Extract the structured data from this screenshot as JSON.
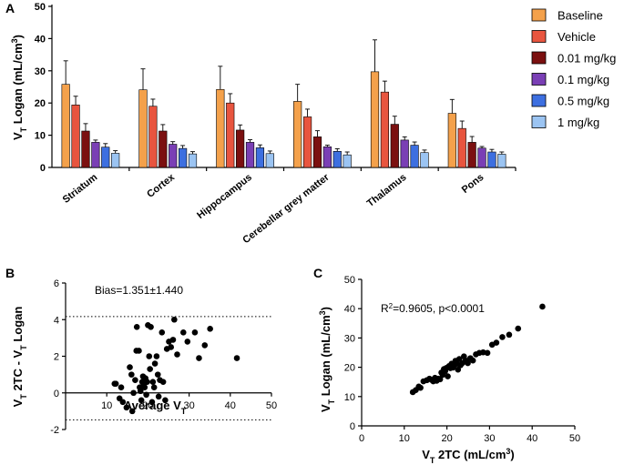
{
  "chart_data": [
    {
      "panel": "A",
      "type": "bar",
      "ylabel_main": "V",
      "ylabel_sub": "T",
      "ylabel_rest": " Logan (mL/cm",
      "ylabel_sup": "3",
      "ylabel_end": ")",
      "ylim": [
        0,
        50
      ],
      "yticks": [
        0,
        10,
        20,
        30,
        40,
        50
      ],
      "categories": [
        "Striatum",
        "Cortex",
        "Hippocampus",
        "Cerebellar grey matter",
        "Thalamus",
        "Pons"
      ],
      "series": [
        {
          "name": "Baseline",
          "color": "#f4a14b",
          "values": [
            25.8,
            24.1,
            24.2,
            20.5,
            29.7,
            16.8
          ],
          "errors": [
            7.3,
            6.5,
            7.2,
            5.3,
            9.9,
            4.3
          ]
        },
        {
          "name": "Vehicle",
          "color": "#e8553f",
          "values": [
            19.4,
            19.0,
            20.0,
            15.7,
            23.4,
            12.1
          ],
          "errors": [
            2.7,
            2.2,
            2.9,
            2.4,
            3.4,
            2.3
          ]
        },
        {
          "name": "0.01 mg/kg",
          "color": "#7b1010",
          "values": [
            11.3,
            11.3,
            11.6,
            9.5,
            13.4,
            7.8
          ],
          "errors": [
            2.3,
            2.0,
            1.6,
            1.9,
            2.5,
            1.8
          ]
        },
        {
          "name": "0.1 mg/kg",
          "color": "#7a3fb5",
          "values": [
            7.8,
            7.2,
            7.8,
            6.4,
            8.5,
            6.0
          ],
          "errors": [
            0.7,
            0.8,
            0.8,
            0.5,
            1.0,
            0.5
          ]
        },
        {
          "name": "0.5 mg/kg",
          "color": "#3d6fe0",
          "values": [
            6.3,
            5.9,
            6.1,
            5.0,
            6.9,
            4.8
          ],
          "errors": [
            1.1,
            0.9,
            0.9,
            0.8,
            1.0,
            0.8
          ]
        },
        {
          "name": "1 mg/kg",
          "color": "#9bc4f2",
          "values": [
            4.4,
            4.2,
            4.3,
            3.9,
            4.6,
            4.1
          ],
          "errors": [
            0.8,
            0.7,
            0.8,
            0.9,
            0.8,
            0.7
          ]
        }
      ]
    },
    {
      "panel": "B",
      "type": "scatter",
      "annotation": "Bias=1.351±1.440",
      "ylabel": "Vₜ 2TC - Vₜ Logan",
      "ylabel_parts": [
        "V",
        "T",
        " 2TC - V",
        "T",
        " Logan"
      ],
      "xlabel_main": "Average V",
      "xlabel_sub": "T",
      "xlim": [
        0,
        50
      ],
      "ylim": [
        -2,
        6
      ],
      "xticks": [
        10,
        20,
        30,
        40,
        50
      ],
      "yticks": [
        -2,
        0,
        2,
        4,
        6
      ],
      "bias_limits": [
        4.17,
        -1.47
      ],
      "x": [
        11.9,
        12.2,
        13.1,
        13.5,
        13.9,
        14.8,
        15.6,
        16.0,
        16.2,
        16.5,
        16.9,
        17.2,
        17.3,
        17.8,
        18.0,
        18.2,
        18.4,
        18.6,
        18.8,
        19.0,
        19.2,
        19.4,
        19.6,
        19.8,
        20.0,
        20.3,
        20.5,
        20.7,
        21.0,
        21.2,
        21.5,
        21.7,
        22.1,
        22.4,
        22.6,
        22.9,
        23.4,
        23.7,
        24.2,
        24.6,
        25.1,
        25.6,
        26.1,
        26.4,
        27.1,
        28.6,
        29.6,
        31.4,
        32.4,
        33.8,
        35.1,
        41.6
      ],
      "y": [
        0.5,
        0.5,
        -0.3,
        0.3,
        -0.5,
        -0.8,
        1.4,
        1.0,
        -1.0,
        0.0,
        0.7,
        2.3,
        3.6,
        2.3,
        0.3,
        0.1,
        -0.4,
        0.6,
        0.9,
        0.4,
        0.3,
        0.8,
        -0.1,
        0.6,
        3.7,
        2.0,
        1.3,
        3.6,
        -0.5,
        0.6,
        0.3,
        1.6,
        2.0,
        1.0,
        -0.2,
        0.7,
        3.3,
        0.6,
        -0.4,
        2.4,
        2.8,
        2.5,
        2.9,
        4.0,
        2.1,
        3.3,
        2.8,
        3.3,
        1.9,
        2.6,
        3.5,
        1.9
      ]
    },
    {
      "panel": "C",
      "type": "scatter",
      "annotation_main": "R",
      "annotation_sup": "2",
      "annotation_rest": "=0.9605, p<0.0001",
      "xlabel_main": "V",
      "xlabel_sub": "T",
      "xlabel_rest": " 2TC (mL/cm",
      "xlabel_sup": "3",
      "xlabel_end": ")",
      "ylabel_main": "V",
      "ylabel_sub": "T",
      "ylabel_rest": " Logan (mL/cm",
      "ylabel_sup": "3",
      "ylabel_end": ")",
      "xlim": [
        0,
        50
      ],
      "ylim": [
        0,
        50
      ],
      "xticks": [
        0,
        10,
        20,
        30,
        40,
        50
      ],
      "yticks": [
        0,
        10,
        20,
        30,
        40,
        50
      ],
      "x": [
        12.0,
        12.7,
        13.4,
        13.8,
        14.5,
        15.3,
        15.9,
        16.4,
        16.8,
        17.2,
        17.6,
        18.0,
        18.4,
        18.7,
        19.0,
        19.3,
        19.6,
        19.9,
        20.2,
        20.5,
        20.8,
        21.1,
        21.4,
        21.7,
        22.0,
        22.3,
        22.6,
        22.9,
        23.2,
        23.6,
        24.0,
        24.4,
        24.9,
        25.5,
        26.1,
        26.8,
        27.6,
        28.5,
        29.5,
        30.6,
        31.6,
        33.0,
        34.6,
        36.7,
        42.4
      ],
      "y": [
        11.5,
        12.2,
        13.4,
        13.0,
        15.2,
        15.6,
        16.1,
        15.7,
        15.2,
        16.4,
        15.4,
        16.1,
        15.9,
        18.2,
        17.4,
        19.4,
        18.7,
        19.8,
        16.9,
        20.4,
        19.7,
        21.2,
        19.9,
        20.7,
        22.2,
        21.2,
        19.2,
        22.8,
        20.7,
        21.4,
        23.7,
        22.3,
        21.4,
        23.1,
        22.3,
        24.4,
        24.9,
        25.1,
        24.9,
        27.7,
        28.4,
        30.3,
        31.1,
        33.2,
        40.7
      ]
    }
  ]
}
